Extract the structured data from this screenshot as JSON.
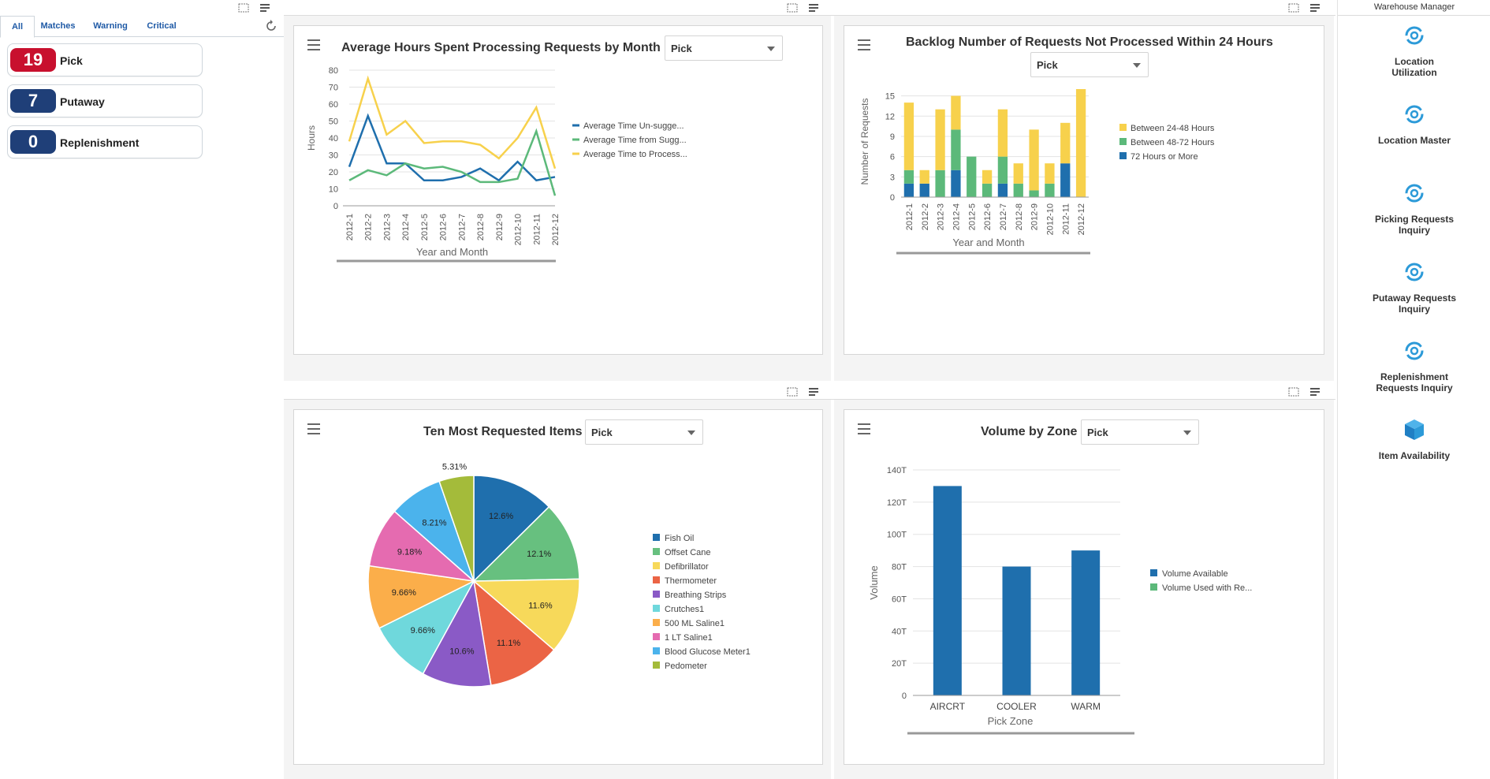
{
  "watchlist": {
    "tabs": [
      {
        "label": "All"
      },
      {
        "label": "Matches"
      },
      {
        "label": "Warning"
      },
      {
        "label": "Critical"
      }
    ],
    "items": [
      {
        "count": "19",
        "label": "Pick",
        "color": "#c8102e"
      },
      {
        "count": "7",
        "label": "Putaway",
        "color": "#1f3f78"
      },
      {
        "count": "0",
        "label": "Replenishment",
        "color": "#1f3f78"
      }
    ]
  },
  "panels": {
    "avg_hours": {
      "title": "Average Hours Spent Processing Requests by Month",
      "filter": "Pick"
    },
    "backlog": {
      "title": "Backlog Number of Requests Not Processed Within 24 Hours",
      "filter": "Pick"
    },
    "top_items": {
      "title": "Ten Most Requested Items",
      "filter": "Pick"
    },
    "volume_zone": {
      "title": "Volume by Zone",
      "filter": "Pick"
    }
  },
  "springboard": {
    "title": "Warehouse Manager",
    "items": [
      {
        "label": "Location Utilization",
        "icon": "refresh-gear-icon"
      },
      {
        "label": "Location Master",
        "icon": "refresh-gear-icon"
      },
      {
        "label": "Picking Requests Inquiry",
        "icon": "refresh-gear-icon"
      },
      {
        "label": "Putaway Requests Inquiry",
        "icon": "refresh-gear-icon"
      },
      {
        "label": "Replenishment Requests Inquiry",
        "icon": "refresh-gear-icon"
      },
      {
        "label": "Item Availability",
        "icon": "cube-icon"
      }
    ]
  },
  "chart_data": [
    {
      "id": "avg_hours",
      "type": "line",
      "title": "Average Hours Spent Processing Requests by Month",
      "xlabel": "Year and Month",
      "ylabel": "Hours",
      "ylim": [
        0,
        80
      ],
      "yticks": [
        0,
        10,
        20,
        30,
        40,
        50,
        60,
        70,
        80
      ],
      "categories": [
        "2012-1",
        "2012-2",
        "2012-3",
        "2012-4",
        "2012-5",
        "2012-6",
        "2012-7",
        "2012-8",
        "2012-9",
        "2012-10",
        "2012-11",
        "2012-12"
      ],
      "series": [
        {
          "name": "Average Time Un-sugge...",
          "color": "#1f6fad",
          "values": [
            23,
            53,
            25,
            25,
            15,
            15,
            17,
            22,
            15,
            26,
            15,
            17
          ]
        },
        {
          "name": "Average Time from Sugg...",
          "color": "#5cb97a",
          "values": [
            15,
            21,
            18,
            25,
            22,
            23,
            20,
            14,
            14,
            16,
            44,
            6
          ]
        },
        {
          "name": "Average Time to Process...",
          "color": "#f7d14c",
          "values": [
            38,
            75,
            42,
            50,
            37,
            38,
            38,
            36,
            28,
            40,
            58,
            22
          ]
        }
      ]
    },
    {
      "id": "backlog",
      "type": "bar",
      "stacked": true,
      "title": "Backlog Number of Requests Not Processed Within 24 Hours",
      "xlabel": "Year and Month",
      "ylabel": "Number of Requests",
      "ylim": [
        0,
        16
      ],
      "yticks": [
        0,
        3,
        6,
        9,
        12,
        15
      ],
      "categories": [
        "2012-1",
        "2012-2",
        "2012-3",
        "2012-4",
        "2012-5",
        "2012-6",
        "2012-7",
        "2012-8",
        "2012-9",
        "2012-10",
        "2012-11",
        "2012-12"
      ],
      "series": [
        {
          "name": "72 Hours or More",
          "color": "#1f6fad",
          "values": [
            2,
            2,
            0,
            4,
            0,
            0,
            2,
            0,
            0,
            0,
            5,
            0
          ]
        },
        {
          "name": "Between 48-72 Hours",
          "color": "#5cb97a",
          "values": [
            2,
            0,
            4,
            6,
            6,
            2,
            4,
            2,
            1,
            2,
            0,
            0
          ]
        },
        {
          "name": "Between 24-48 Hours",
          "color": "#f7d14c",
          "values": [
            10,
            2,
            9,
            5,
            0,
            2,
            7,
            3,
            9,
            3,
            6,
            16
          ]
        }
      ]
    },
    {
      "id": "top_items",
      "type": "pie",
      "title": "Ten Most Requested Items",
      "slices": [
        {
          "label": "Fish Oil",
          "value": 12.6,
          "display": "12.6%",
          "color": "#1f6fad"
        },
        {
          "label": "Offset Cane",
          "value": 12.1,
          "display": "12.1%",
          "color": "#67c07f"
        },
        {
          "label": "Defibrillator",
          "value": 11.6,
          "display": "11.6%",
          "color": "#f7d95a"
        },
        {
          "label": "Thermometer",
          "value": 11.1,
          "display": "11.1%",
          "color": "#eb6445"
        },
        {
          "label": "Breathing Strips",
          "value": 10.6,
          "display": "10.6%",
          "color": "#8a5ac6"
        },
        {
          "label": "Crutches1",
          "value": 9.66,
          "display": "9.66%",
          "color": "#6fd8dc"
        },
        {
          "label": "500 ML Saline1",
          "value": 9.66,
          "display": "9.66%",
          "color": "#fbae4a"
        },
        {
          "label": "1 LT Saline1",
          "value": 9.18,
          "display": "9.18%",
          "color": "#e56bb0"
        },
        {
          "label": "Blood Glucose Meter1",
          "value": 8.21,
          "display": "8.21%",
          "color": "#4bb3ec"
        },
        {
          "label": "Pedometer",
          "value": 5.31,
          "display": "5.31%",
          "color": "#a4bb3a"
        }
      ]
    },
    {
      "id": "volume_zone",
      "type": "bar",
      "title": "Volume by Zone",
      "xlabel": "Pick Zone",
      "ylabel": "Volume",
      "ylim": [
        0,
        140
      ],
      "yticks": [
        0,
        20,
        40,
        60,
        80,
        100,
        120,
        140
      ],
      "ytick_labels": [
        "0",
        "20T",
        "40T",
        "60T",
        "80T",
        "100T",
        "120T",
        "140T"
      ],
      "categories": [
        "AIRCRT",
        "COOLER",
        "WARM"
      ],
      "series": [
        {
          "name": "Volume Available",
          "color": "#1f6fad",
          "values": [
            130,
            80,
            90
          ]
        },
        {
          "name": "Volume Used with Re...",
          "color": "#5cb97a",
          "values": [
            0,
            0,
            0
          ]
        }
      ]
    }
  ]
}
